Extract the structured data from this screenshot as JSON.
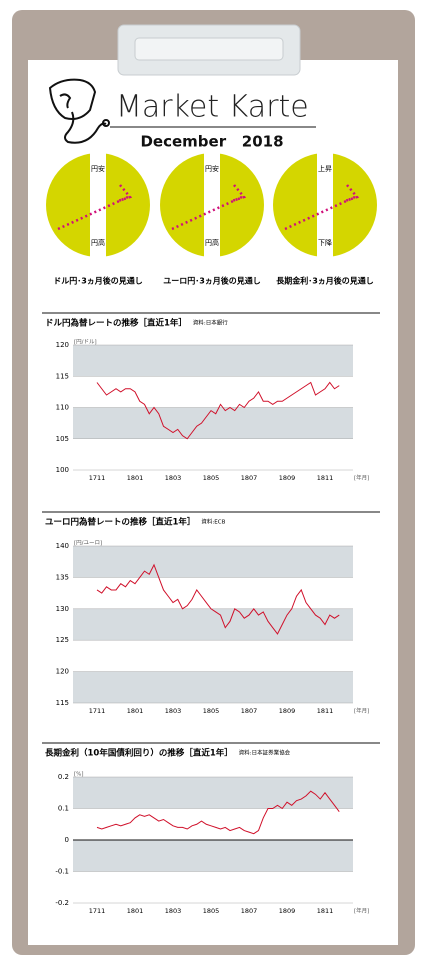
{
  "header": {
    "title": "Market Karte",
    "date": "December   2018"
  },
  "outlook": [
    {
      "top": "円安",
      "bottom": "円高",
      "caption": "ドル円･3ヵ月後の見通し"
    },
    {
      "top": "円安",
      "bottom": "円高",
      "caption": "ユーロ円･3ヵ月後の見通し"
    },
    {
      "top": "上昇",
      "bottom": "下降",
      "caption": "長期金利･3ヵ月後の見通し"
    }
  ],
  "chart_data": [
    {
      "type": "line",
      "title": "ドル円為替レートの推移［直近1年］",
      "source": "資料:日本銀行",
      "y_label": "[円/ドル]",
      "x_label": "[年月]",
      "color": "#d0102a",
      "categories": [
        "1711",
        null,
        null,
        null,
        null,
        null,
        null,
        null,
        "1801",
        null,
        null,
        null,
        null,
        null,
        null,
        null,
        "1803",
        null,
        null,
        null,
        null,
        null,
        null,
        null,
        "1805",
        null,
        null,
        null,
        null,
        null,
        null,
        null,
        "1807",
        null,
        null,
        null,
        null,
        null,
        null,
        null,
        "1809",
        null,
        null,
        null,
        null,
        null,
        null,
        null,
        "1811",
        null,
        null,
        null
      ],
      "values": [
        114,
        113,
        112,
        112.5,
        113,
        112.5,
        113,
        113,
        112.5,
        111,
        110.5,
        109,
        110,
        109,
        107,
        106.5,
        106,
        106.5,
        105.5,
        105,
        106,
        107,
        107.5,
        108.5,
        109.5,
        109,
        110.5,
        109.5,
        110,
        109.5,
        110.5,
        110,
        111,
        111.5,
        112.5,
        111,
        111,
        110.5,
        111,
        111,
        111.5,
        112,
        112.5,
        113,
        113.5,
        114,
        112,
        112.5,
        113,
        114,
        113,
        113.5
      ],
      "ylim": [
        100,
        120
      ],
      "yticks": [
        100,
        105,
        110,
        115,
        120
      ]
    },
    {
      "type": "line",
      "title": "ユーロ円為替レートの推移［直近1年］",
      "source": "資料:ECB",
      "y_label": "[円/ユーロ]",
      "x_label": "[年月]",
      "color": "#d0102a",
      "categories": [
        "1711",
        null,
        null,
        null,
        null,
        null,
        null,
        null,
        "1801",
        null,
        null,
        null,
        null,
        null,
        null,
        null,
        "1803",
        null,
        null,
        null,
        null,
        null,
        null,
        null,
        "1805",
        null,
        null,
        null,
        null,
        null,
        null,
        null,
        "1807",
        null,
        null,
        null,
        null,
        null,
        null,
        null,
        "1809",
        null,
        null,
        null,
        null,
        null,
        null,
        null,
        "1811",
        null,
        null,
        null
      ],
      "values": [
        133,
        132.5,
        133.5,
        133,
        133,
        134,
        133.5,
        134.5,
        134,
        135,
        136,
        135.5,
        137,
        135,
        133,
        132,
        131,
        131.5,
        130,
        130.5,
        131.5,
        133,
        132,
        131,
        130,
        129.5,
        129,
        127,
        128,
        130,
        129.5,
        128.5,
        129,
        130,
        129,
        129.5,
        128,
        127,
        126,
        127.5,
        129,
        130,
        132,
        133,
        131,
        130,
        129,
        128.5,
        127.5,
        129,
        128.5,
        129
      ],
      "ylim": [
        115,
        140
      ],
      "yticks": [
        115,
        120,
        125,
        130,
        135,
        140
      ]
    },
    {
      "type": "line",
      "title": "長期金利（10年国債利回り）の推移［直近1年］",
      "source": "資料:日本証券業協会",
      "y_label": "[%]",
      "x_label": "[年月]",
      "color": "#d0102a",
      "categories": [
        "1711",
        null,
        null,
        null,
        null,
        null,
        null,
        null,
        "1801",
        null,
        null,
        null,
        null,
        null,
        null,
        null,
        "1803",
        null,
        null,
        null,
        null,
        null,
        null,
        null,
        "1805",
        null,
        null,
        null,
        null,
        null,
        null,
        null,
        "1807",
        null,
        null,
        null,
        null,
        null,
        null,
        null,
        "1809",
        null,
        null,
        null,
        null,
        null,
        null,
        null,
        "1811",
        null,
        null,
        null
      ],
      "values": [
        0.04,
        0.035,
        0.04,
        0.045,
        0.05,
        0.045,
        0.05,
        0.055,
        0.07,
        0.08,
        0.075,
        0.08,
        0.07,
        0.06,
        0.065,
        0.055,
        0.045,
        0.04,
        0.04,
        0.035,
        0.045,
        0.05,
        0.06,
        0.05,
        0.045,
        0.04,
        0.035,
        0.04,
        0.03,
        0.035,
        0.04,
        0.03,
        0.025,
        0.02,
        0.03,
        0.07,
        0.1,
        0.1,
        0.11,
        0.1,
        0.12,
        0.11,
        0.125,
        0.13,
        0.14,
        0.155,
        0.145,
        0.13,
        0.15,
        0.13,
        0.11,
        0.09
      ],
      "ylim": [
        -0.2,
        0.2
      ],
      "yticks": [
        -0.2,
        -0.1,
        0,
        0.1,
        0.2
      ]
    }
  ]
}
